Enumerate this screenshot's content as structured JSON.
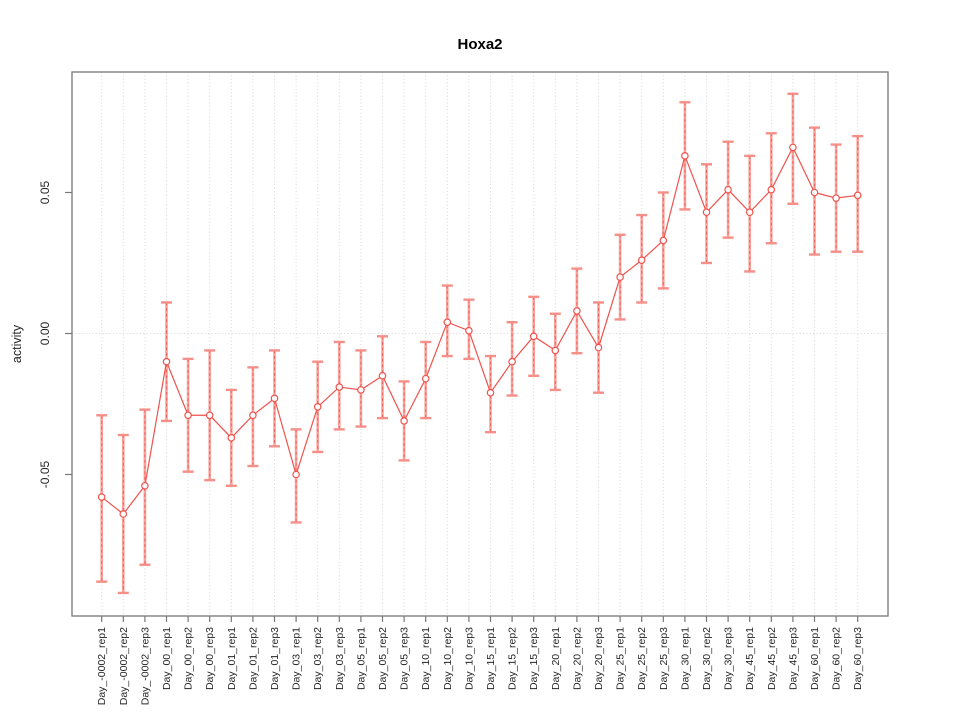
{
  "chart_data": {
    "type": "line",
    "title": "Hoxa2",
    "xlabel": "",
    "ylabel": "activity",
    "legend": "none",
    "categories": [
      "Day_-0002_rep1",
      "Day_-0002_rep2",
      "Day_-0002_rep3",
      "Day_00_rep1",
      "Day_00_rep2",
      "Day_00_rep3",
      "Day_01_rep1",
      "Day_01_rep2",
      "Day_01_rep3",
      "Day_03_rep1",
      "Day_03_rep2",
      "Day_03_rep3",
      "Day_05_rep1",
      "Day_05_rep2",
      "Day_05_rep3",
      "Day_10_rep1",
      "Day_10_rep2",
      "Day_10_rep3",
      "Day_15_rep1",
      "Day_15_rep2",
      "Day_15_rep3",
      "Day_20_rep1",
      "Day_20_rep2",
      "Day_20_rep3",
      "Day_25_rep1",
      "Day_25_rep2",
      "Day_25_rep3",
      "Day_30_rep1",
      "Day_30_rep2",
      "Day_30_rep3",
      "Day_45_rep1",
      "Day_45_rep2",
      "Day_45_rep3",
      "Day_60_rep1",
      "Day_60_rep2",
      "Day_60_rep3"
    ],
    "series": [
      {
        "name": "activity",
        "marker": "open-circle",
        "values": [
          -0.058,
          -0.064,
          -0.054,
          -0.01,
          -0.029,
          -0.029,
          -0.037,
          -0.029,
          -0.023,
          -0.05,
          -0.026,
          -0.019,
          -0.02,
          -0.015,
          -0.031,
          -0.016,
          0.004,
          0.001,
          -0.021,
          -0.01,
          -0.001,
          -0.006,
          0.008,
          -0.005,
          0.02,
          0.026,
          0.033,
          0.063,
          0.043,
          0.051,
          0.043,
          0.051,
          0.066,
          0.05,
          0.048,
          0.049
        ],
        "ci_low": [
          -0.088,
          -0.092,
          -0.082,
          -0.031,
          -0.049,
          -0.052,
          -0.054,
          -0.047,
          -0.04,
          -0.067,
          -0.042,
          -0.034,
          -0.033,
          -0.03,
          -0.045,
          -0.03,
          -0.008,
          -0.009,
          -0.035,
          -0.022,
          -0.015,
          -0.02,
          -0.007,
          -0.021,
          0.005,
          0.011,
          0.016,
          0.044,
          0.025,
          0.034,
          0.022,
          0.032,
          0.046,
          0.028,
          0.029,
          0.029
        ],
        "ci_high": [
          -0.029,
          -0.036,
          -0.027,
          0.011,
          -0.009,
          -0.006,
          -0.02,
          -0.012,
          -0.006,
          -0.034,
          -0.01,
          -0.003,
          -0.006,
          -0.001,
          -0.017,
          -0.003,
          0.017,
          0.012,
          -0.008,
          0.004,
          0.013,
          0.007,
          0.023,
          0.011,
          0.035,
          0.042,
          0.05,
          0.082,
          0.06,
          0.068,
          0.063,
          0.071,
          0.085,
          0.073,
          0.067,
          0.07
        ]
      }
    ],
    "yticks": [
      -0.05,
      0,
      0.05
    ],
    "ytick_labels": [
      "-0.05",
      "0.00",
      "0.05"
    ],
    "ylim": [
      -0.099,
      0.093
    ],
    "grid": {
      "vertical": "dotted line at every category tick",
      "horizontal": "dotted line at y = 0 only"
    },
    "colors": {
      "series": "#f0524c",
      "error_bar": "#f9a19b",
      "error_cap": "#f58f88",
      "grid": "#d6d6d6",
      "axis": "#777777",
      "tick_text": "#262626",
      "title_text": "#000000"
    }
  }
}
